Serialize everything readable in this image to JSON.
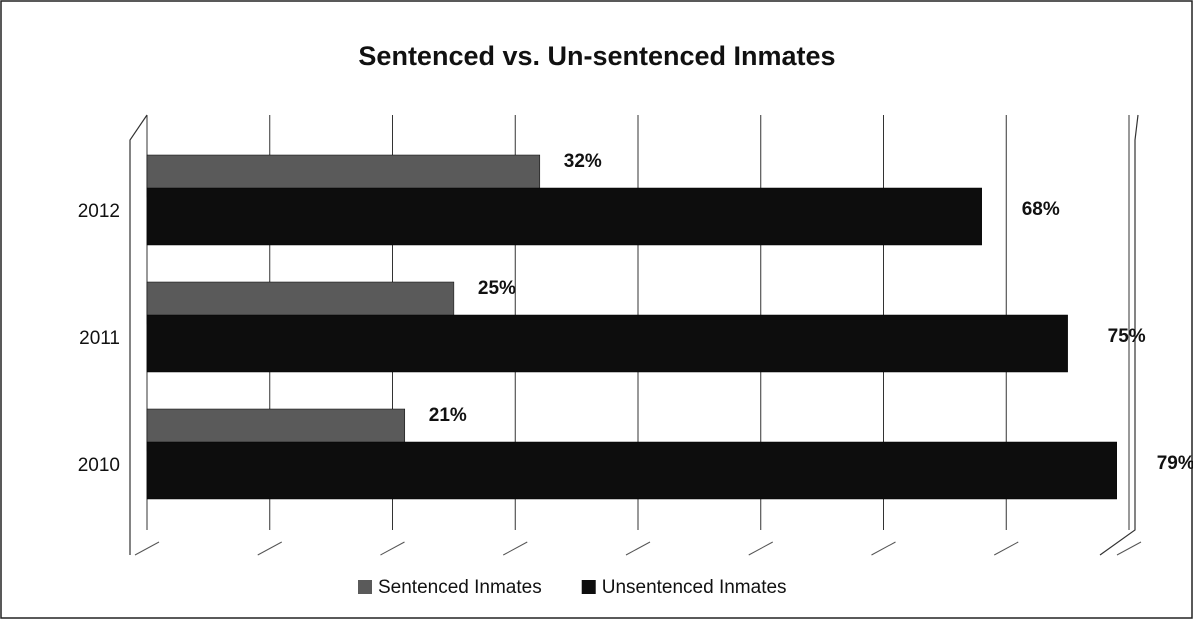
{
  "chart_data": {
    "type": "bar",
    "orientation": "horizontal",
    "title": "Sentenced vs. Un-sentenced Inmates",
    "categories": [
      "2012",
      "2011",
      "2010"
    ],
    "series": [
      {
        "name": "Sentenced Inmates",
        "color": "#5a5a5a",
        "values": [
          32,
          25,
          21
        ],
        "value_labels": [
          "32%",
          "25%",
          "21%"
        ]
      },
      {
        "name": "Unsentenced Inmates",
        "color": "#0d0d0d",
        "values": [
          68,
          75,
          79
        ],
        "value_labels": [
          "68%",
          "75%",
          "79%"
        ]
      }
    ],
    "xlim": [
      0,
      80
    ],
    "xticks": [
      0,
      10,
      20,
      30,
      40,
      50,
      60,
      70,
      80
    ],
    "grid": true,
    "legend": "bottom"
  }
}
